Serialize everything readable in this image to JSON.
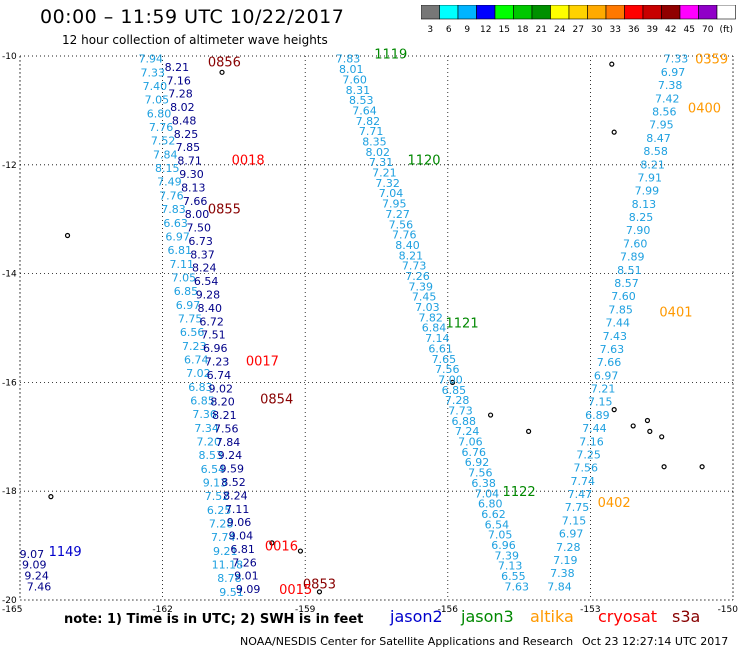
{
  "header": {
    "title": "00:00 – 11:59 UTC 10/22/2017",
    "subtitle": "12 hour collection of altimeter wave heights"
  },
  "colorbar": {
    "labels": [
      "3",
      "6",
      "9",
      "12",
      "15",
      "18",
      "21",
      "24",
      "27",
      "30",
      "33",
      "36",
      "39",
      "42",
      "45",
      "70",
      "(ft)"
    ],
    "colors": [
      "#777777",
      "#00ffff",
      "#00b4ff",
      "#0000ff",
      "#00ff00",
      "#00c800",
      "#009000",
      "#ffff00",
      "#ffd200",
      "#ffaa00",
      "#ff7800",
      "#ff0000",
      "#c80000",
      "#900000",
      "#ff00ff",
      "#9000c8",
      "#ffffff"
    ]
  },
  "axes": {
    "x_ticks": [
      "-165",
      "-162",
      "-159",
      "-156",
      "-153",
      "-150"
    ],
    "y_ticks": [
      "-10",
      "-12",
      "-14",
      "-16",
      "-18",
      "-20"
    ],
    "xlim": [
      -165,
      -150
    ],
    "ylim": [
      -20,
      -10
    ]
  },
  "colors": {
    "jason2": "#0000cc",
    "jason3": "#008800",
    "altika": "#ff9900",
    "cryosat": "#ff0000",
    "s3a": "#880000",
    "swh_light": "#1ea0e0",
    "swh_dark": "#000088"
  },
  "tracks": [
    {
      "satellite": "s3a",
      "time_labels": [
        {
          "text": "0856",
          "lon": -160.7,
          "lat": -10.1,
          "color": "#880000"
        },
        {
          "text": "0855",
          "lon": -160.7,
          "lat": -12.8,
          "color": "#880000"
        },
        {
          "text": "0854",
          "lon": -159.6,
          "lat": -16.3,
          "color": "#880000"
        },
        {
          "text": "0853",
          "lon": -158.7,
          "lat": -19.7,
          "color": "#880000"
        }
      ],
      "start": [
        -162.25,
        -10.05
      ],
      "end": [
        -160.55,
        -19.85
      ],
      "values": [
        "7.94",
        "7.33",
        "7.40",
        "7.05",
        "6.80",
        "7.76",
        "7.52",
        "7.84",
        "8.15",
        "7.49",
        "7.76",
        "7.83",
        "6.63",
        "6.97",
        "6.81",
        "7.11",
        "7.05",
        "6.85",
        "6.97",
        "7.75",
        "6.56",
        "7.23",
        "6.74",
        "7.02",
        "6.83",
        "6.85",
        "7.36",
        "7.34",
        "7.20",
        "8.53",
        "6.54",
        "9.13",
        "7.52",
        "6.25",
        "7.28",
        "7.74",
        "9.21",
        "11.18",
        "8.78",
        "9.51"
      ],
      "value_color": "#1ea0e0"
    },
    {
      "satellite": "cryosat",
      "time_labels": [
        {
          "text": "0018",
          "lon": -160.2,
          "lat": -11.9,
          "color": "#ff0000"
        },
        {
          "text": "0017",
          "lon": -159.9,
          "lat": -15.6,
          "color": "#ff0000"
        },
        {
          "text": "0016",
          "lon": -159.5,
          "lat": -19.0,
          "color": "#ff0000"
        },
        {
          "text": "0015",
          "lon": -159.2,
          "lat": -19.8,
          "color": "#ff0000"
        }
      ],
      "start": [
        -161.7,
        -10.2
      ],
      "end": [
        -160.2,
        -19.8
      ],
      "values": [
        "8.21",
        "7.16",
        "7.28",
        "8.02",
        "8.48",
        "8.25",
        "7.85",
        "8.71",
        "9.30",
        "8.13",
        "7.66",
        "8.00",
        "7.50",
        "6.73",
        "8.37",
        "8.24",
        "6.54",
        "9.28",
        "8.40",
        "6.72",
        "7.51",
        "6.96",
        "7.23",
        "6.74",
        "9.02",
        "8.20",
        "8.21",
        "7.56",
        "7.84",
        "9.24",
        "9.59",
        "8.52",
        "8.24",
        "7.11",
        "9.06",
        "9.04",
        "6.81",
        "7.26",
        "9.01",
        "9.09"
      ],
      "value_color": "#000088"
    },
    {
      "satellite": "jason3",
      "time_labels": [
        {
          "text": "1119",
          "lon": -157.2,
          "lat": -9.95,
          "color": "#008800"
        },
        {
          "text": "1120",
          "lon": -156.5,
          "lat": -11.9,
          "color": "#008800"
        },
        {
          "text": "1121",
          "lon": -155.7,
          "lat": -14.9,
          "color": "#008800"
        },
        {
          "text": "1122",
          "lon": -154.5,
          "lat": -18.0,
          "color": "#008800"
        }
      ],
      "start": [
        -158.1,
        -10.05
      ],
      "end": [
        -154.55,
        -19.75
      ],
      "values": [
        "7.83",
        "8.01",
        "7.60",
        "8.31",
        "8.53",
        "7.64",
        "7.82",
        "7.71",
        "8.35",
        "8.02",
        "7.31",
        "7.21",
        "7.32",
        "7.04",
        "7.95",
        "7.27",
        "7.56",
        "7.76",
        "8.40",
        "8.21",
        "7.73",
        "7.26",
        "7.39",
        "7.45",
        "7.03",
        "7.82",
        "6.84",
        "7.14",
        "6.61",
        "7.65",
        "7.56",
        "7.00",
        "6.85",
        "7.28",
        "7.73",
        "6.88",
        "7.24",
        "7.06",
        "6.76",
        "6.92",
        "7.56",
        "6.38",
        "7.04",
        "6.80",
        "6.62",
        "6.54",
        "7.05",
        "6.96",
        "7.39",
        "7.13",
        "6.55",
        "7.63"
      ],
      "value_color": "#1ea0e0"
    },
    {
      "satellite": "altika",
      "time_labels": [
        {
          "text": "0359",
          "lon": -150.45,
          "lat": -10.05,
          "color": "#ff9900"
        },
        {
          "text": "0400",
          "lon": -150.6,
          "lat": -10.95,
          "color": "#ff9900"
        },
        {
          "text": "0401",
          "lon": -151.2,
          "lat": -14.7,
          "color": "#ff9900"
        },
        {
          "text": "0402",
          "lon": -152.5,
          "lat": -18.2,
          "color": "#ff9900"
        }
      ],
      "start": [
        -151.2,
        -10.05
      ],
      "end": [
        -153.65,
        -19.75
      ],
      "values": [
        "7.33",
        "6.97",
        "7.38",
        "7.42",
        "8.56",
        "7.95",
        "8.47",
        "8.58",
        "8.21",
        "7.91",
        "7.99",
        "8.13",
        "8.25",
        "7.90",
        "7.60",
        "7.89",
        "8.51",
        "8.57",
        "7.60",
        "7.85",
        "7.44",
        "7.43",
        "7.63",
        "7.66",
        "6.97",
        "7.21",
        "7.15",
        "6.89",
        "7.44",
        "7.16",
        "7.25",
        "7.56",
        "7.74",
        "7.47",
        "7.75",
        "7.15",
        "6.97",
        "7.28",
        "7.19",
        "7.38",
        "7.84"
      ],
      "value_color": "#1ea0e0"
    },
    {
      "satellite": "jason2",
      "time_labels": [
        {
          "text": "1149",
          "lon": -164.05,
          "lat": -19.1,
          "color": "#0000cc"
        }
      ],
      "start": [
        -164.75,
        -19.15
      ],
      "end": [
        -164.6,
        -19.75
      ],
      "values": [
        "9.07",
        "9.09",
        "9.24",
        "7.46"
      ],
      "value_color": "#000088"
    }
  ],
  "islands": [
    [
      -164.0,
      -13.3
    ],
    [
      -164.35,
      -18.1
    ],
    [
      -160.75,
      -10.3
    ],
    [
      -159.7,
      -18.95
    ],
    [
      -159.1,
      -19.1
    ],
    [
      -158.7,
      -19.85
    ],
    [
      -155.9,
      -16.0
    ],
    [
      -155.1,
      -16.6
    ],
    [
      -154.3,
      -16.9
    ],
    [
      -152.55,
      -10.15
    ],
    [
      -152.5,
      -11.4
    ],
    [
      -152.5,
      -16.5
    ],
    [
      -152.1,
      -16.8
    ],
    [
      -151.8,
      -16.7
    ],
    [
      -151.75,
      -16.9
    ],
    [
      -151.5,
      -17.0
    ],
    [
      -151.45,
      -17.55
    ],
    [
      -150.65,
      -17.55
    ]
  ],
  "legend": {
    "note": "note:  1) Time is in UTC;  2) SWH is in feet",
    "jason2": "jason2",
    "jason3": "jason3",
    "altika": "altika",
    "cryosat": "cryosat",
    "s3a": "s3a"
  },
  "footer": {
    "credit": "NOAA/NESDIS Center for Satellite Applications and Research",
    "timestamp": "Oct 23 12:27:14 UTC 2017"
  }
}
